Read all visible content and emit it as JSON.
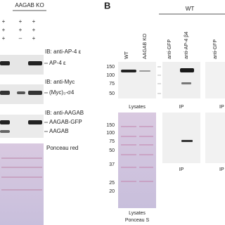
{
  "panel_a": {
    "header": "AAGAB KO",
    "conditions": [
      [
        "+",
        "+",
        "+"
      ],
      [
        "+",
        "+",
        "+"
      ],
      [
        "+",
        "–",
        "+"
      ]
    ],
    "blots": [
      {
        "ib": "IB: anti-AP-4 ε",
        "bands": [
          "AP-4 ε"
        ]
      },
      {
        "ib": "IB: anti-Myc",
        "bands": [
          "(Myc)₃-σ4"
        ]
      },
      {
        "ib": "IB: anti-AAGAB",
        "bands": [
          "AAGAB-GFP",
          "AAGAB"
        ]
      }
    ],
    "stain": "Ponceau red"
  },
  "panel_b": {
    "letter": "B",
    "group": "WT",
    "lanes": [
      "WT",
      "AAGAB KO",
      "anti-GFP",
      "anti-AP-4 β4",
      "anti-GFP"
    ],
    "markers_top": [
      "150",
      "100",
      "75",
      "50"
    ],
    "markers_bottom": [
      "150",
      "100",
      "75",
      "50",
      "37",
      "25",
      "20"
    ],
    "labels_top": [
      "Lysates",
      "IP",
      "IP"
    ],
    "labels_bottom": [
      "IP",
      "IP"
    ],
    "lysates_caption": [
      "Lysates",
      "Ponceau S"
    ]
  }
}
